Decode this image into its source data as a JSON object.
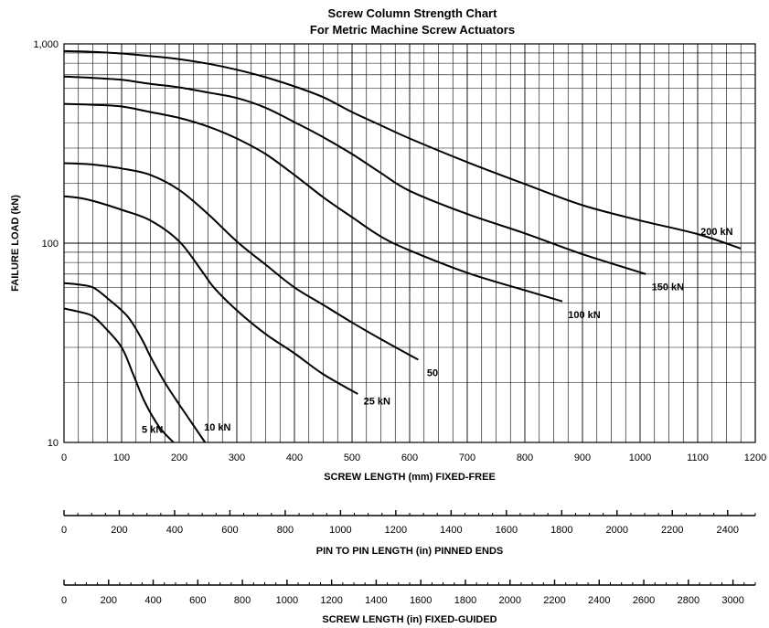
{
  "chart_data": {
    "type": "line",
    "title": "Screw Column Strength Chart",
    "subtitle": "For Metric Machine Screw Actuators",
    "xlabel": "SCREW LENGTH (mm) FIXED-FREE",
    "ylabel": "FAILURE LOAD (kN)",
    "x_scale": "linear",
    "y_scale": "log",
    "xlim": [
      0,
      1200
    ],
    "ylim": [
      10,
      1000
    ],
    "grid": true,
    "x_ticks": [
      "0",
      "100",
      "200",
      "300",
      "400",
      "500",
      "600",
      "700",
      "800",
      "900",
      "1000",
      "1100",
      "1200"
    ],
    "y_ticks": [
      "10",
      "100",
      "1,000"
    ],
    "series": [
      {
        "name": "5 kN",
        "points": [
          [
            0,
            47
          ],
          [
            30,
            45
          ],
          [
            50,
            43
          ],
          [
            70,
            38
          ],
          [
            100,
            30
          ],
          [
            120,
            22
          ],
          [
            140,
            16
          ],
          [
            165,
            12
          ],
          [
            190,
            9.8
          ]
        ]
      },
      {
        "name": "10 kN",
        "points": [
          [
            0,
            63
          ],
          [
            25,
            62
          ],
          [
            50,
            60
          ],
          [
            75,
            53
          ],
          [
            110,
            43
          ],
          [
            135,
            33
          ],
          [
            150,
            27
          ],
          [
            175,
            20
          ],
          [
            200,
            15.5
          ],
          [
            245,
            10
          ]
        ]
      },
      {
        "name": "25 kN",
        "points": [
          [
            0,
            172
          ],
          [
            30,
            168
          ],
          [
            60,
            160
          ],
          [
            100,
            147
          ],
          [
            150,
            130
          ],
          [
            200,
            102
          ],
          [
            240,
            72
          ],
          [
            260,
            60
          ],
          [
            300,
            46
          ],
          [
            350,
            35
          ],
          [
            400,
            28
          ],
          [
            450,
            22
          ],
          [
            510,
            17.5
          ]
        ]
      },
      {
        "name": "50",
        "points": [
          [
            0,
            252
          ],
          [
            50,
            248
          ],
          [
            100,
            237
          ],
          [
            150,
            220
          ],
          [
            200,
            185
          ],
          [
            250,
            140
          ],
          [
            300,
            102
          ],
          [
            350,
            78
          ],
          [
            400,
            60
          ],
          [
            450,
            49
          ],
          [
            500,
            40
          ],
          [
            550,
            33
          ],
          [
            615,
            26
          ]
        ]
      },
      {
        "name": "100 kN",
        "points": [
          [
            0,
            500
          ],
          [
            50,
            495
          ],
          [
            100,
            485
          ],
          [
            150,
            455
          ],
          [
            200,
            425
          ],
          [
            250,
            385
          ],
          [
            300,
            335
          ],
          [
            350,
            280
          ],
          [
            400,
            220
          ],
          [
            450,
            170
          ],
          [
            500,
            135
          ],
          [
            550,
            108
          ],
          [
            600,
            92
          ],
          [
            700,
            71
          ],
          [
            800,
            58
          ],
          [
            865,
            51
          ]
        ]
      },
      {
        "name": "150 kN",
        "points": [
          [
            0,
            685
          ],
          [
            50,
            675
          ],
          [
            100,
            660
          ],
          [
            150,
            630
          ],
          [
            200,
            605
          ],
          [
            250,
            570
          ],
          [
            300,
            535
          ],
          [
            350,
            478
          ],
          [
            400,
            405
          ],
          [
            450,
            340
          ],
          [
            500,
            280
          ],
          [
            550,
            225
          ],
          [
            600,
            183
          ],
          [
            700,
            140
          ],
          [
            800,
            112
          ],
          [
            900,
            88
          ],
          [
            1010,
            70
          ]
        ]
      },
      {
        "name": "200 kN",
        "points": [
          [
            0,
            920
          ],
          [
            50,
            912
          ],
          [
            100,
            895
          ],
          [
            150,
            868
          ],
          [
            200,
            838
          ],
          [
            250,
            795
          ],
          [
            300,
            742
          ],
          [
            350,
            680
          ],
          [
            400,
            612
          ],
          [
            450,
            540
          ],
          [
            500,
            455
          ],
          [
            550,
            390
          ],
          [
            600,
            335
          ],
          [
            700,
            255
          ],
          [
            800,
            198
          ],
          [
            900,
            155
          ],
          [
            1000,
            130
          ],
          [
            1100,
            111
          ],
          [
            1175,
            94
          ]
        ]
      }
    ],
    "annotations": [
      "5 kN",
      "10 kN",
      "25 kN",
      "50",
      "100 kN",
      "150 kN",
      "200 kN"
    ]
  },
  "secondary_axes": [
    {
      "label": "PIN TO PIN LENGTH (in) PINNED ENDS",
      "ticks": [
        "0",
        "200",
        "400",
        "600",
        "800",
        "1000",
        "1200",
        "1400",
        "1600",
        "1800",
        "2000",
        "2200",
        "2400"
      ],
      "max": 2500
    },
    {
      "label": "SCREW LENGTH (in) FIXED-GUIDED",
      "ticks": [
        "0",
        "200",
        "400",
        "600",
        "800",
        "1000",
        "1200",
        "1400",
        "1600",
        "1800",
        "2000",
        "2200",
        "2400",
        "2600",
        "2800",
        "3000"
      ],
      "max": 3100
    }
  ]
}
